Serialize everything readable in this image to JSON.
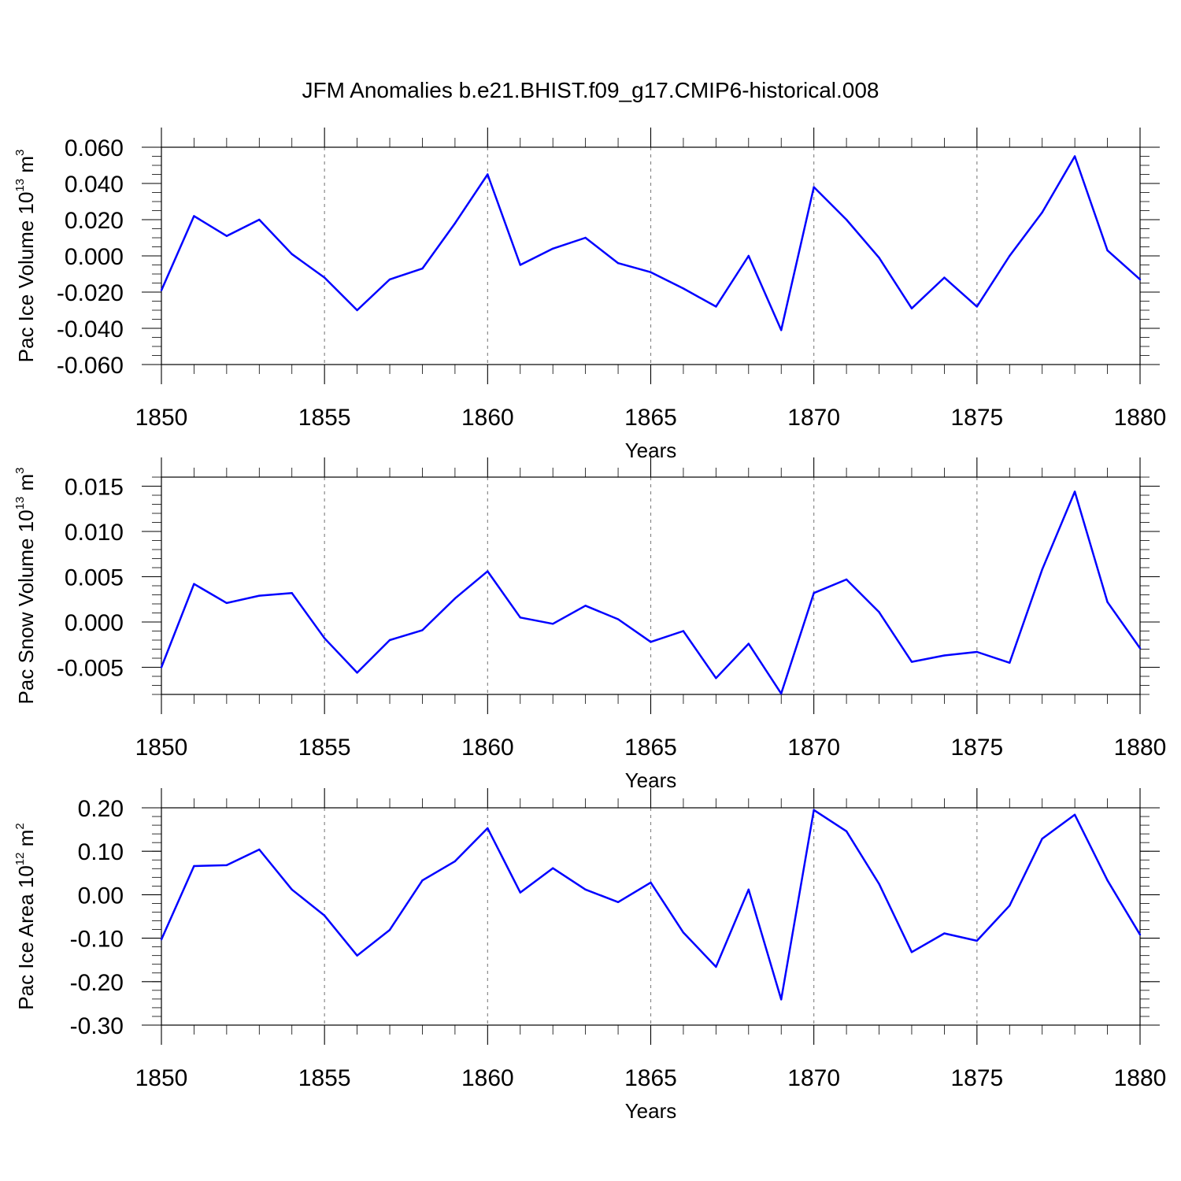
{
  "figure": {
    "title": "JFM Anomalies b.e21.BHIST.f09_g17.CMIP6-historical.008"
  },
  "colors": {
    "series": "#0000ff",
    "axis": "#000000",
    "grid": "#888888"
  },
  "chart_data": [
    {
      "type": "line",
      "xlabel": "Years",
      "ylabel": "Pac Ice Volume 10",
      "ylabel_sup": "13",
      "ylabel_unit": " m",
      "ylabel_unit_sup": "3",
      "xlim": [
        1850,
        1880
      ],
      "ylim": [
        -0.06,
        0.06
      ],
      "xticks": [
        1850,
        1855,
        1860,
        1865,
        1870,
        1875,
        1880
      ],
      "xtick_labels": [
        "1850",
        "1855",
        "1860",
        "1865",
        "1870",
        "1875",
        "1880"
      ],
      "yticks": [
        -0.06,
        -0.04,
        -0.02,
        0.0,
        0.02,
        0.04,
        0.06
      ],
      "ytick_labels": [
        "-0.060",
        "-0.040",
        "-0.020",
        "0.000",
        "0.020",
        "0.040",
        "0.060"
      ],
      "yminor_step": 0.005,
      "x": [
        1850,
        1851,
        1852,
        1853,
        1854,
        1855,
        1856,
        1857,
        1858,
        1859,
        1860,
        1861,
        1862,
        1863,
        1864,
        1865,
        1866,
        1867,
        1868,
        1869,
        1870,
        1871,
        1872,
        1873,
        1874,
        1875,
        1876,
        1877,
        1878,
        1879,
        1880
      ],
      "values": [
        -0.019,
        0.022,
        0.011,
        0.02,
        0.001,
        -0.012,
        -0.03,
        -0.013,
        -0.007,
        0.018,
        0.045,
        -0.005,
        0.004,
        0.01,
        -0.004,
        -0.009,
        -0.018,
        -0.028,
        0.0,
        -0.041,
        0.038,
        0.02,
        -0.001,
        -0.029,
        -0.012,
        -0.028,
        0.0,
        0.024,
        0.055,
        0.003,
        -0.013
      ]
    },
    {
      "type": "line",
      "xlabel": "Years",
      "ylabel": "Pac Snow Volume 10",
      "ylabel_sup": "13",
      "ylabel_unit": " m",
      "ylabel_unit_sup": "3",
      "xlim": [
        1850,
        1880
      ],
      "ylim": [
        -0.008,
        0.016
      ],
      "xticks": [
        1850,
        1855,
        1860,
        1865,
        1870,
        1875,
        1880
      ],
      "xtick_labels": [
        "1850",
        "1855",
        "1860",
        "1865",
        "1870",
        "1875",
        "1880"
      ],
      "yticks": [
        -0.005,
        0.0,
        0.005,
        0.01,
        0.015
      ],
      "ytick_labels": [
        "-0.005",
        "0.000",
        "0.005",
        "0.010",
        "0.015"
      ],
      "yminor_step": 0.001,
      "x": [
        1850,
        1851,
        1852,
        1853,
        1854,
        1855,
        1856,
        1857,
        1858,
        1859,
        1860,
        1861,
        1862,
        1863,
        1864,
        1865,
        1866,
        1867,
        1868,
        1869,
        1870,
        1871,
        1872,
        1873,
        1874,
        1875,
        1876,
        1877,
        1878,
        1879,
        1880
      ],
      "values": [
        -0.005,
        0.0042,
        0.0021,
        0.0029,
        0.0032,
        -0.0018,
        -0.0056,
        -0.002,
        -0.0009,
        0.0026,
        0.0056,
        0.0005,
        -0.0002,
        0.0018,
        0.0003,
        -0.0022,
        -0.001,
        -0.0062,
        -0.0024,
        -0.0079,
        0.0032,
        0.0047,
        0.0011,
        -0.0044,
        -0.0037,
        -0.0033,
        -0.0045,
        0.0058,
        0.0144,
        0.0022,
        -0.0029
      ]
    },
    {
      "type": "line",
      "xlabel": "Years",
      "ylabel": "Pac Ice Area 10",
      "ylabel_sup": "12",
      "ylabel_unit": " m",
      "ylabel_unit_sup": "2",
      "xlim": [
        1850,
        1880
      ],
      "ylim": [
        -0.3,
        0.2
      ],
      "xticks": [
        1850,
        1855,
        1860,
        1865,
        1870,
        1875,
        1880
      ],
      "xtick_labels": [
        "1850",
        "1855",
        "1860",
        "1865",
        "1870",
        "1875",
        "1880"
      ],
      "yticks": [
        -0.3,
        -0.2,
        -0.1,
        0.0,
        0.1,
        0.2
      ],
      "ytick_labels": [
        "-0.30",
        "-0.20",
        "-0.10",
        "0.00",
        "0.10",
        "0.20"
      ],
      "yminor_step": 0.02,
      "x": [
        1850,
        1851,
        1852,
        1853,
        1854,
        1855,
        1856,
        1857,
        1858,
        1859,
        1860,
        1861,
        1862,
        1863,
        1864,
        1865,
        1866,
        1867,
        1868,
        1869,
        1870,
        1871,
        1872,
        1873,
        1874,
        1875,
        1876,
        1877,
        1878,
        1879,
        1880
      ],
      "values": [
        -0.103,
        0.066,
        0.068,
        0.104,
        0.012,
        -0.048,
        -0.14,
        -0.081,
        0.033,
        0.077,
        0.153,
        0.005,
        0.061,
        0.012,
        -0.017,
        0.028,
        -0.087,
        -0.166,
        0.012,
        -0.241,
        0.195,
        0.146,
        0.025,
        -0.132,
        -0.089,
        -0.106,
        -0.025,
        0.129,
        0.184,
        0.033,
        -0.092
      ]
    }
  ]
}
